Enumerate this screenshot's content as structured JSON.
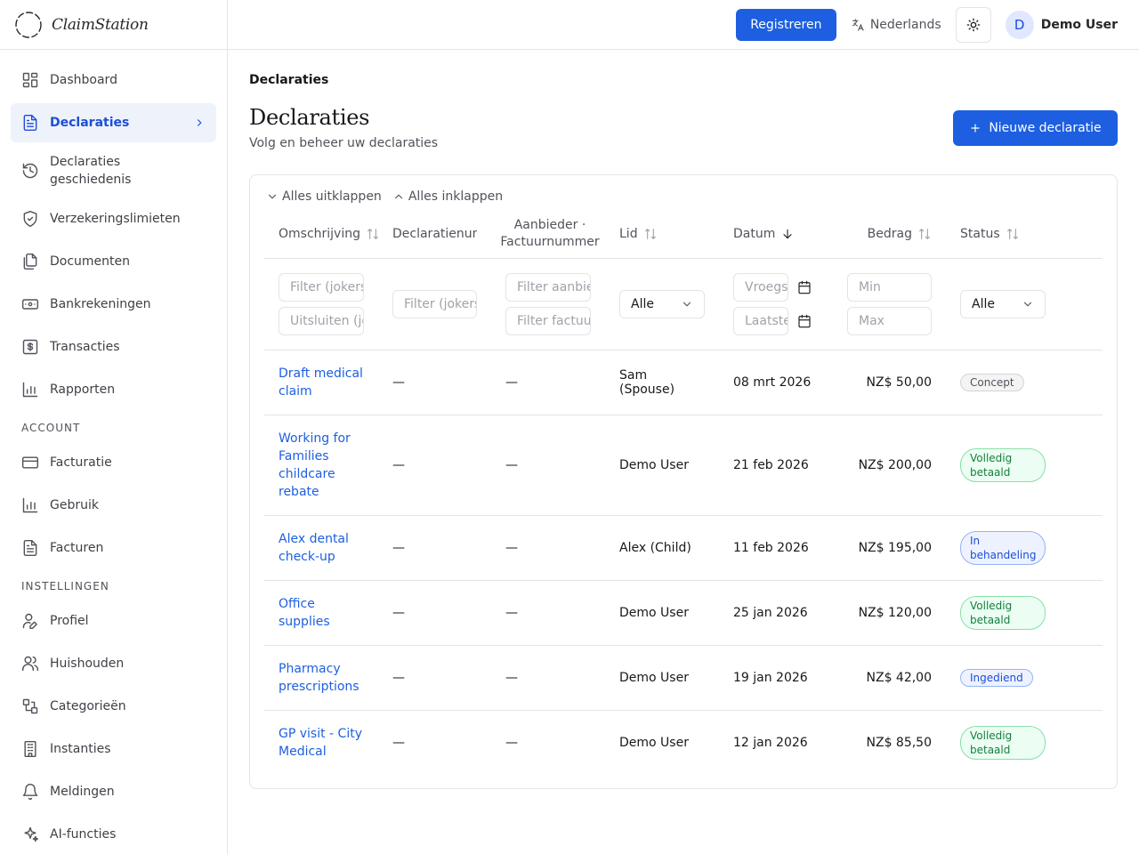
{
  "brand": {
    "name": "ClaimStation"
  },
  "sidebar": {
    "items": [
      {
        "label": "Dashboard",
        "icon": "dashboard-icon"
      },
      {
        "label": "Declaraties",
        "icon": "document-icon",
        "active": true
      },
      {
        "label": "Declaraties geschiedenis",
        "icon": "history-icon"
      },
      {
        "label": "Verzekeringslimieten",
        "icon": "shield-icon"
      },
      {
        "label": "Documenten",
        "icon": "documents-icon"
      },
      {
        "label": "Bankrekeningen",
        "icon": "banknote-icon"
      },
      {
        "label": "Transacties",
        "icon": "dollar-icon"
      },
      {
        "label": "Rapporten",
        "icon": "bar-chart-icon"
      }
    ],
    "account_label": "ACCOUNT",
    "account_items": [
      {
        "label": "Facturatie",
        "icon": "credit-card-icon"
      },
      {
        "label": "Gebruik",
        "icon": "bar-chart-icon"
      },
      {
        "label": "Facturen",
        "icon": "document-icon"
      }
    ],
    "settings_label": "INSTELLINGEN",
    "settings_items": [
      {
        "label": "Profiel",
        "icon": "user-pen-icon"
      },
      {
        "label": "Huishouden",
        "icon": "users-icon"
      },
      {
        "label": "Categorieën",
        "icon": "categories-icon"
      },
      {
        "label": "Instanties",
        "icon": "building-icon"
      },
      {
        "label": "Meldingen",
        "icon": "bell-icon"
      },
      {
        "label": "AI-functies",
        "icon": "sparkles-icon"
      }
    ]
  },
  "topbar": {
    "register_label": "Registreren",
    "language": "Nederlands",
    "user_initial": "D",
    "user_name": "Demo User"
  },
  "page": {
    "breadcrumb": "Declaraties",
    "title": "Declaraties",
    "subtitle": "Volg en beheer uw declaraties",
    "new_button": "Nieuwe declaratie",
    "expand_all": "Alles uitklappen",
    "collapse_all": "Alles inklappen"
  },
  "table": {
    "columns": {
      "description": "Omschrijving",
      "claim_number": "Declaratienummer",
      "provider_line1": "Aanbieder ·",
      "provider_line2": "Factuurnummer",
      "member": "Lid",
      "date": "Datum",
      "amount": "Bedrag",
      "status": "Status"
    },
    "filters": {
      "desc_include": "Filter (jokers: *, ?)",
      "desc_exclude": "Uitsluiten (jokers)",
      "claim_number": "Filter (jokers)",
      "provider": "Filter aanbieder",
      "invoice": "Filter factuurnummer",
      "member_select": "Alle",
      "date_from": "Vroegste",
      "date_to": "Laatste",
      "amount_min": "Min",
      "amount_max": "Max",
      "status_select": "Alle"
    },
    "rows": [
      {
        "description": "Draft medical claim",
        "claim_number": "—",
        "provider": "—",
        "member": "Sam (Spouse)",
        "date": "08 mrt 2026",
        "amount": "NZ$ 50,00",
        "status": "Concept",
        "status_kind": "concept"
      },
      {
        "description": "Working for Families childcare rebate",
        "claim_number": "—",
        "provider": "—",
        "member": "Demo User",
        "date": "21 feb 2026",
        "amount": "NZ$ 200,00",
        "status": "Volledig betaald",
        "status_kind": "paid"
      },
      {
        "description": "Alex dental check-up",
        "claim_number": "—",
        "provider": "—",
        "member": "Alex (Child)",
        "date": "11 feb 2026",
        "amount": "NZ$ 195,00",
        "status": "In behandeling",
        "status_kind": "processing"
      },
      {
        "description": "Office supplies",
        "claim_number": "—",
        "provider": "—",
        "member": "Demo User",
        "date": "25 jan 2026",
        "amount": "NZ$ 120,00",
        "status": "Volledig betaald",
        "status_kind": "paid"
      },
      {
        "description": "Pharmacy prescriptions",
        "claim_number": "—",
        "provider": "—",
        "member": "Demo User",
        "date": "19 jan 2026",
        "amount": "NZ$ 42,00",
        "status": "Ingediend",
        "status_kind": "submitted"
      },
      {
        "description": "GP visit - City Medical",
        "claim_number": "—",
        "provider": "—",
        "member": "Demo User",
        "date": "12 jan 2026",
        "amount": "NZ$ 85,50",
        "status": "Volledig betaald",
        "status_kind": "paid"
      }
    ]
  },
  "colors": {
    "primary": "#1d5fe0",
    "paid_bg": "#ecfdf3",
    "paid_border": "#86e0a8",
    "paid_text": "#15803d",
    "processing_bg": "#eef2ff",
    "processing_border": "#93b4f5",
    "processing_text": "#1d4ed8",
    "submitted_bg": "#eef2ff",
    "submitted_border": "#93b4f5",
    "submitted_text": "#1d4ed8",
    "concept_bg": "#f4f4f5",
    "concept_border": "#d4d4d8",
    "concept_text": "#52525b"
  }
}
